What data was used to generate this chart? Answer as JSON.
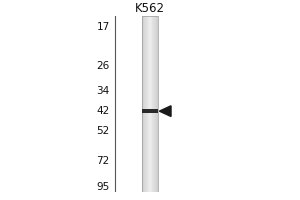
{
  "title": "K562",
  "mw_markers": [
    95,
    72,
    52,
    42,
    34,
    26,
    17
  ],
  "band_mw": 42,
  "bg_color": "#ffffff",
  "outer_bg": "#ffffff",
  "lane_center_color": "#e8e8e8",
  "lane_edge_color": "#c0c0c0",
  "band_color": "#2a2a2a",
  "arrow_color": "#1a1a1a",
  "marker_label_color": "#111111",
  "title_color": "#111111",
  "title_fontsize": 8.5,
  "marker_fontsize": 7.5,
  "fig_width": 3.0,
  "fig_height": 2.0,
  "dpi": 100
}
